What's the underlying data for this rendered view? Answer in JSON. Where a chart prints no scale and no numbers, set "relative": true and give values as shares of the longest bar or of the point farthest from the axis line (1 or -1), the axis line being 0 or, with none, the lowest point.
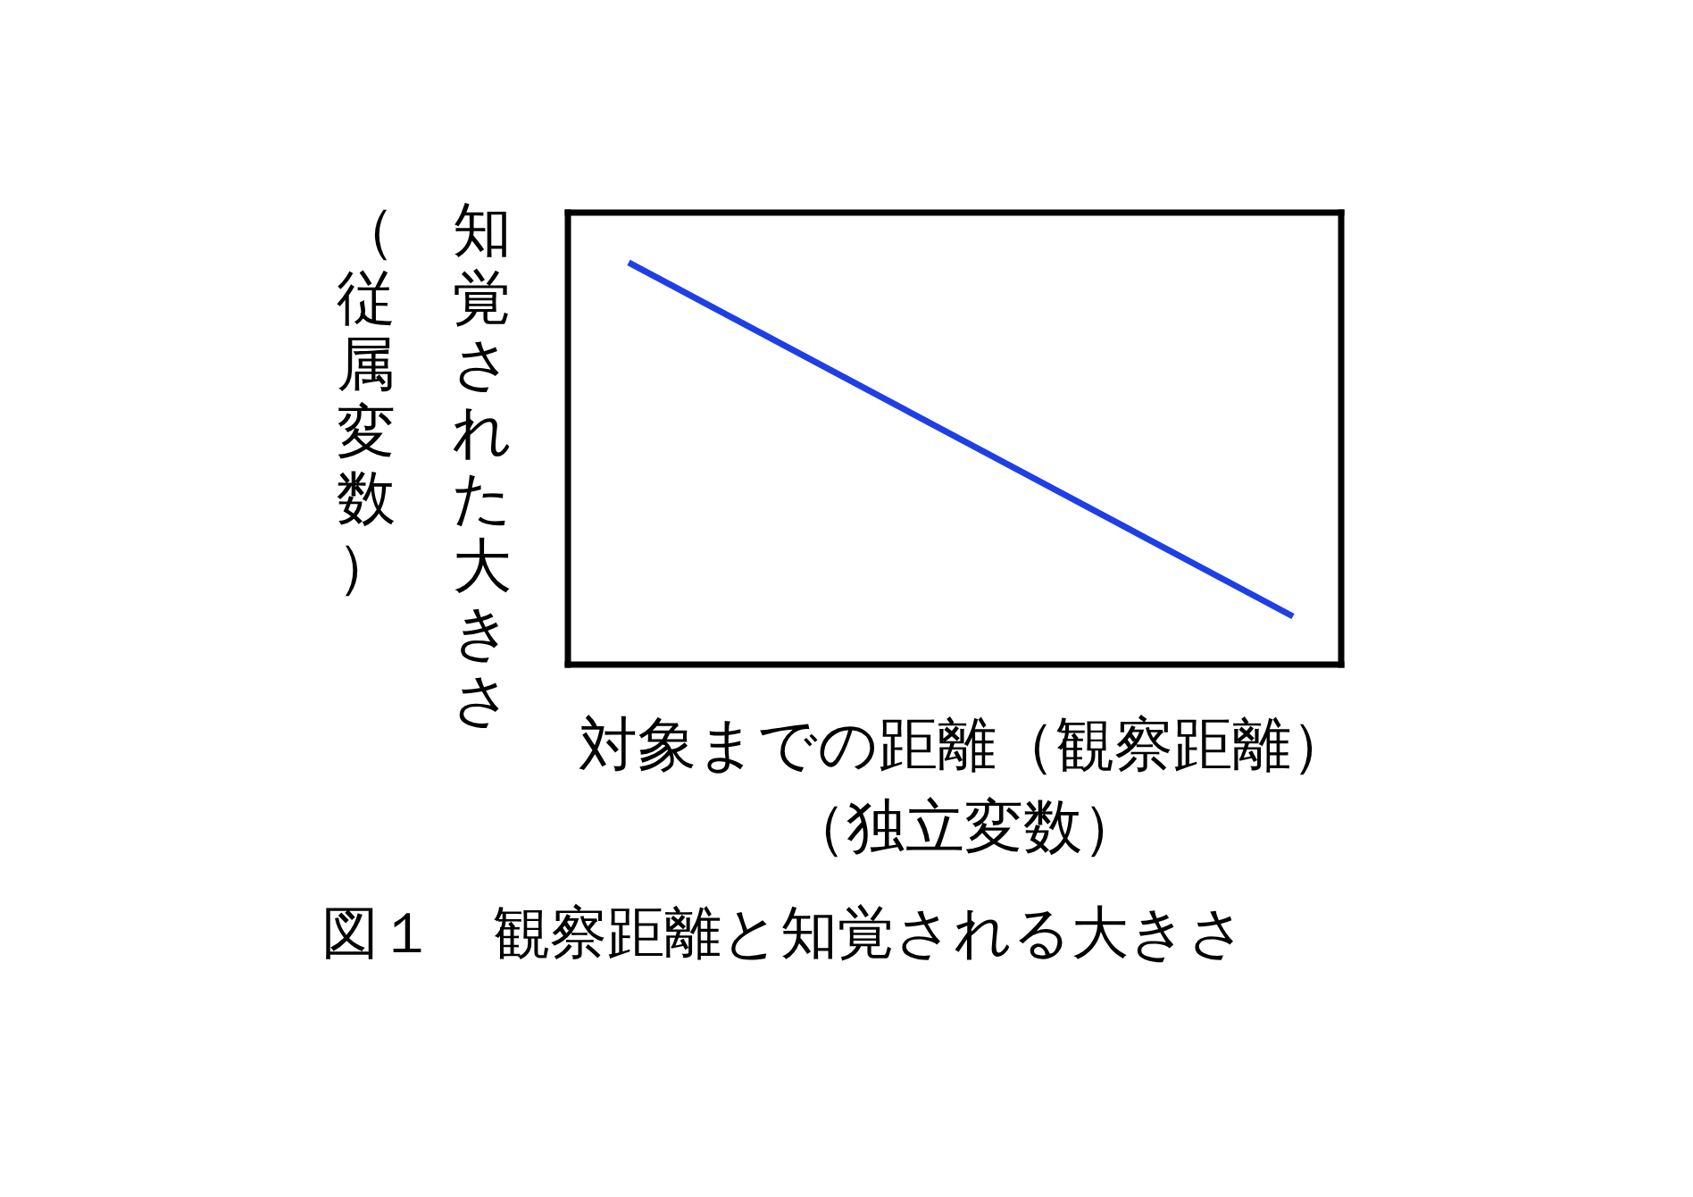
{
  "chart_data": {
    "type": "line",
    "title": "図１　観察距離と知覚される大きさ",
    "xlabel": "対象までの距離（観察距離）（独立変数）",
    "ylabel": "知覚された大きさ（従属変数）",
    "categories": [
      null,
      null
    ],
    "relative": true,
    "values": [
      1,
      0.12
    ],
    "color": "#1f3fe6"
  }
}
